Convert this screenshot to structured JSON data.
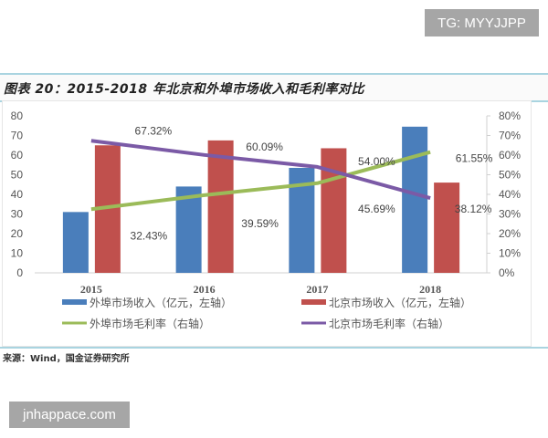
{
  "watermark_top": "TG: MYYJJPP",
  "watermark_bottom": "jnhappace.com",
  "source": "来源：Wind，国金证券研究所",
  "chart_data": {
    "type": "bar",
    "title": "图表 20：2015-2018 年北京和外埠市场收入和毛利率对比",
    "categories": [
      "2015",
      "2016",
      "2017",
      "2018"
    ],
    "y_left": {
      "min": 0,
      "max": 80,
      "ticks": [
        "0",
        "10",
        "20",
        "30",
        "40",
        "50",
        "60",
        "70",
        "80"
      ]
    },
    "y_right": {
      "min": 0,
      "max": 80,
      "ticks": [
        "0%",
        "10%",
        "20%",
        "30%",
        "40%",
        "50%",
        "60%",
        "70%",
        "80%"
      ]
    },
    "series": [
      {
        "name": "外埠市场收入（亿元，左轴）",
        "type": "bar",
        "axis": "left",
        "color": "#4a7ebb",
        "values": [
          31,
          44,
          53.5,
          74.5
        ]
      },
      {
        "name": "北京市场收入（亿元，左轴）",
        "type": "bar",
        "axis": "left",
        "color": "#c0504d",
        "values": [
          65,
          67.5,
          63.5,
          46
        ]
      },
      {
        "name": "外埠市场毛利率（右轴）",
        "type": "line",
        "axis": "right",
        "color": "#9bbb59",
        "values": [
          32.43,
          39.59,
          45.69,
          61.55
        ],
        "labels": [
          "32.43%",
          "39.59%",
          "45.69%",
          "61.55%"
        ]
      },
      {
        "name": "北京市场毛利率（右轴）",
        "type": "line",
        "axis": "right",
        "color": "#7b5aa6",
        "values": [
          67.32,
          60.09,
          54.0,
          38.12
        ],
        "labels": [
          "67.32%",
          "60.09%",
          "54.00%",
          "38.12%"
        ]
      }
    ],
    "legend_position": "bottom",
    "grid": false
  }
}
